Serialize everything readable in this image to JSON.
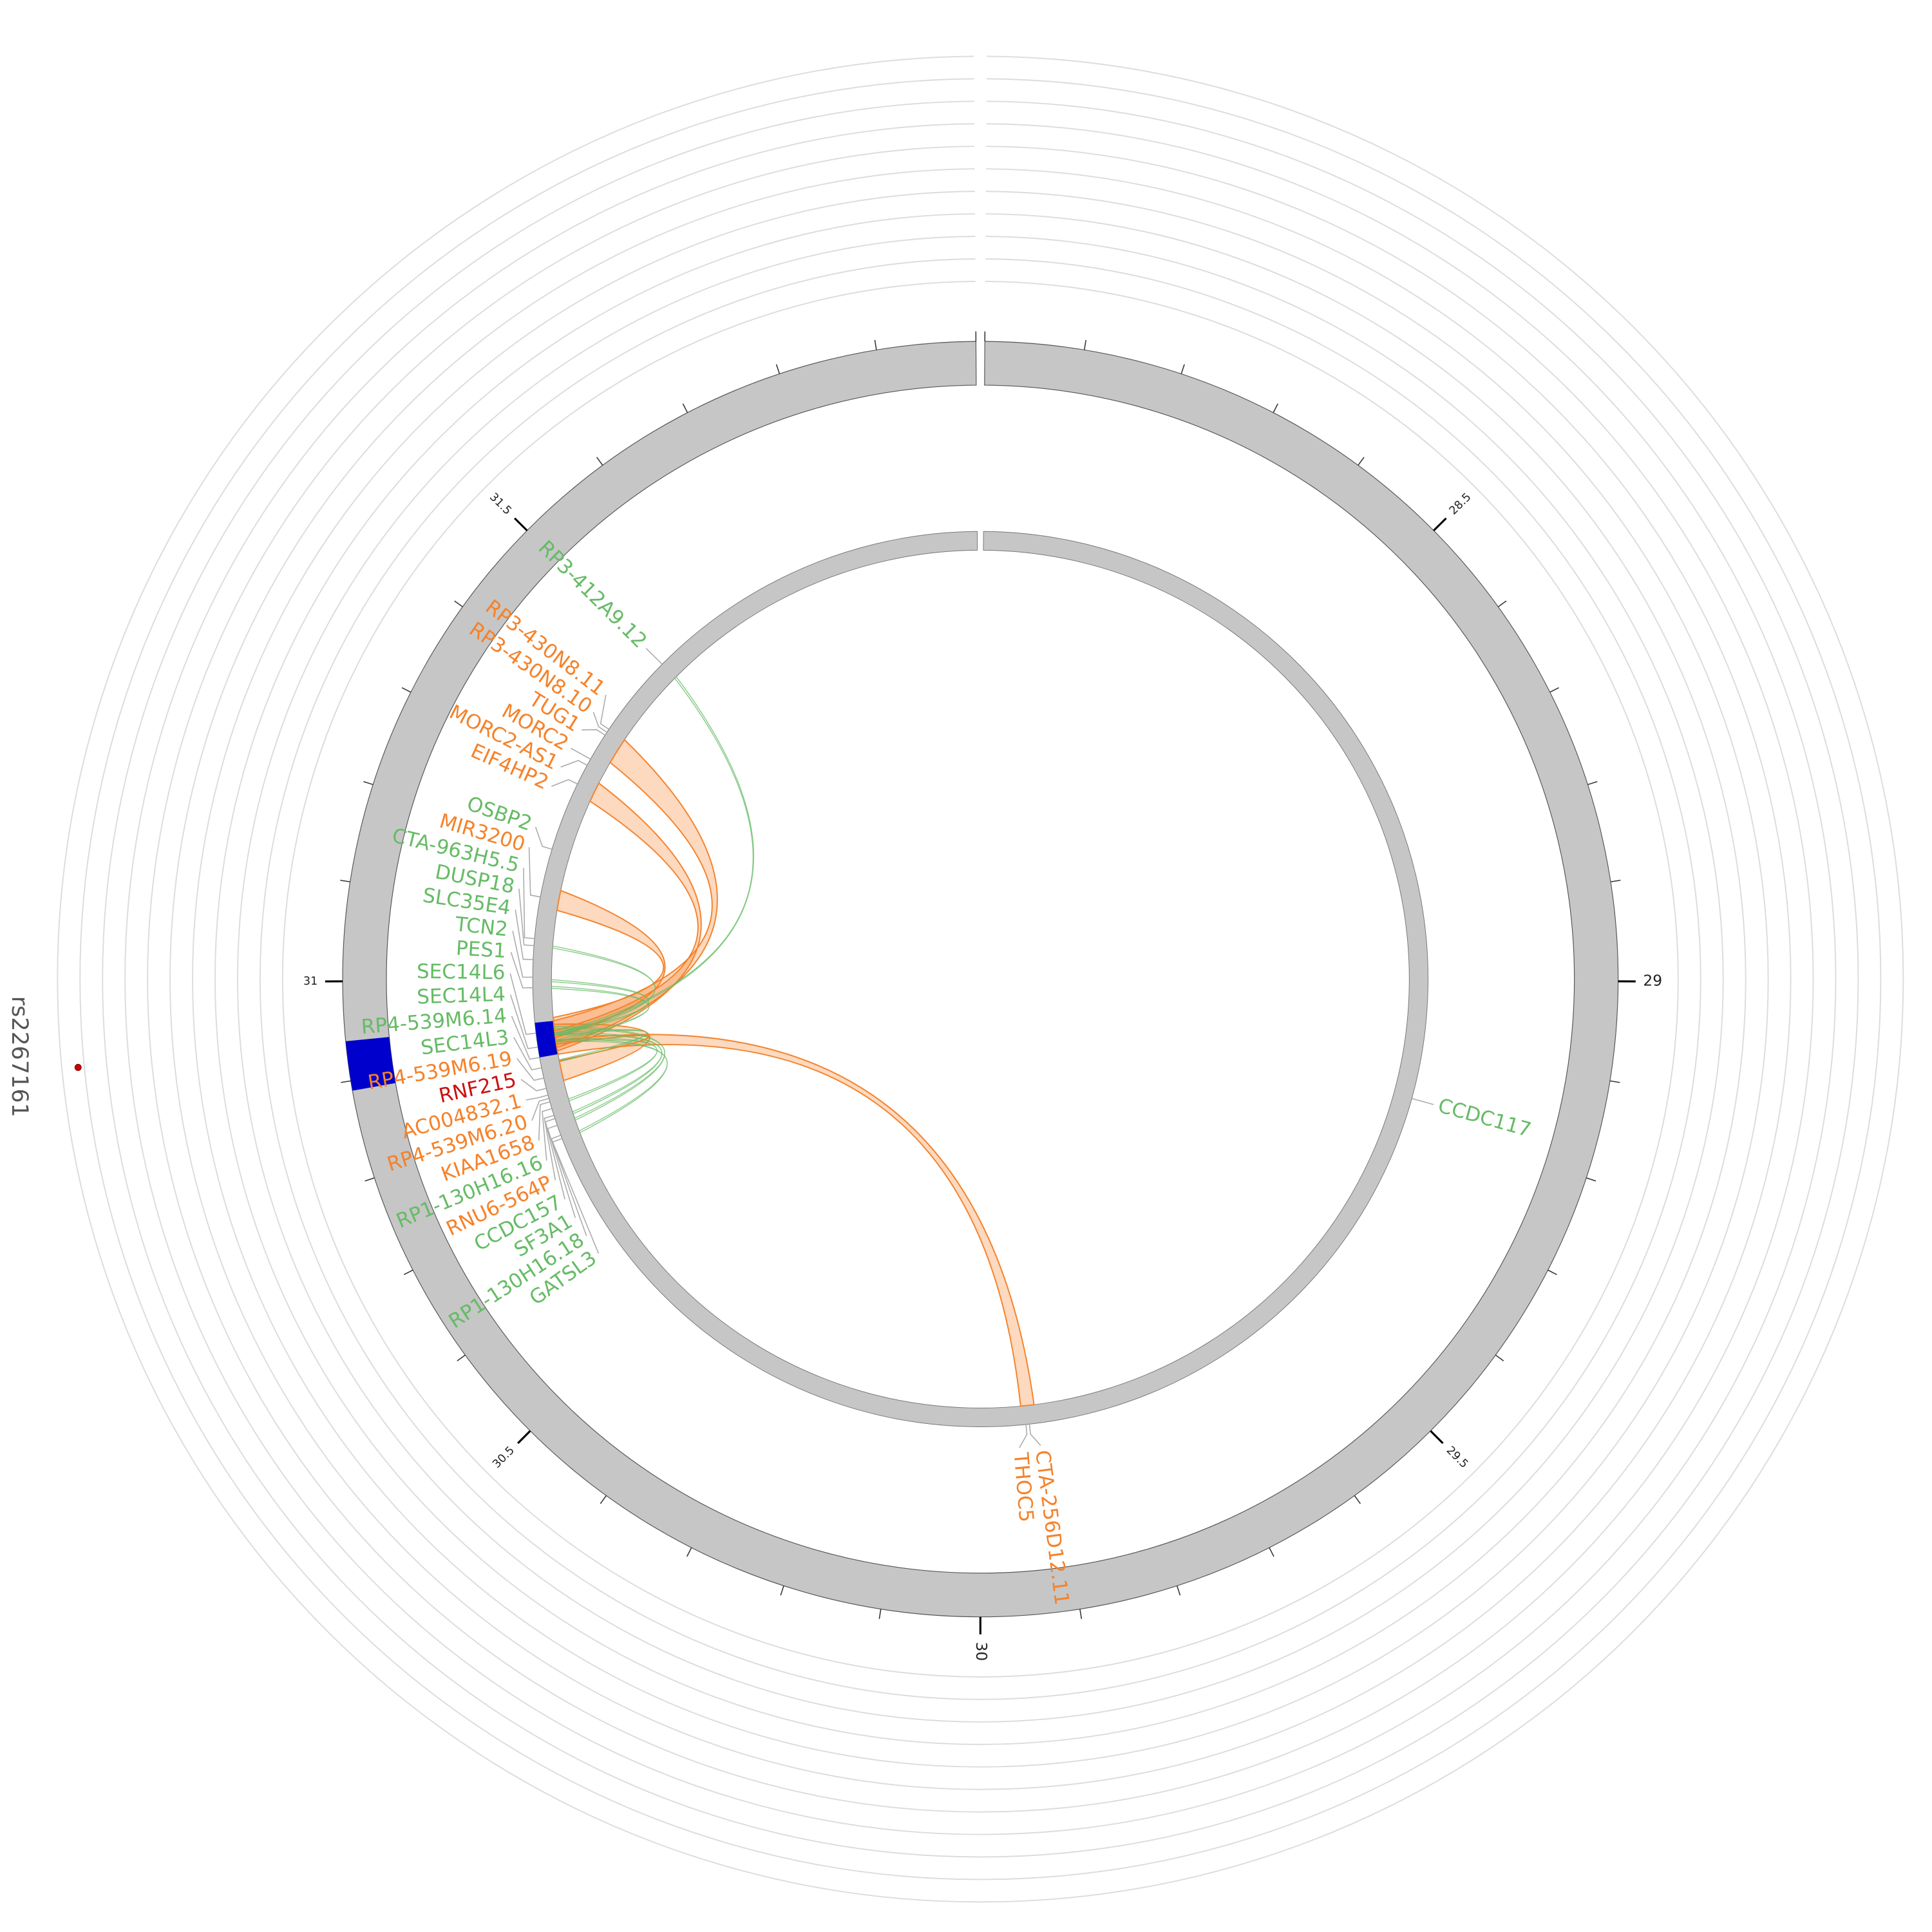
{
  "chart_data": {
    "type": "circos",
    "xlim": [
      28,
      32
    ],
    "xticks": [
      28.5,
      29,
      29.5,
      30,
      30.5,
      31,
      31.5
    ],
    "minor_xticks": [
      28,
      28.1,
      28.2,
      28.3,
      28.4,
      28.6,
      28.7,
      28.8,
      28.9,
      29.1,
      29.2,
      29.3,
      29.4,
      29.6,
      29.7,
      29.8,
      29.9,
      30.1,
      30.2,
      30.3,
      30.4,
      30.6,
      30.7,
      30.8,
      30.9,
      31.1,
      31.2,
      31.3,
      31.4,
      31.6,
      31.7,
      31.8,
      31.9,
      32
    ],
    "highlight": {
      "from": 30.89,
      "to": 30.94,
      "color": "#0000cc"
    },
    "snp": {
      "label": "rs2267161",
      "position": 30.94,
      "color": "#cc0000"
    },
    "genes": [
      {
        "name": "CCDC117",
        "position": 29.17,
        "color": "#66bb66"
      },
      {
        "name": "CTA-256D12.11",
        "position": 29.93,
        "color": "#f5822a"
      },
      {
        "name": "THOC5",
        "position": 29.935,
        "color": "#f5822a"
      },
      {
        "name": "GATSL3",
        "position": 30.77,
        "color": "#66bb66"
      },
      {
        "name": "RP1-130H16.18",
        "position": 30.775,
        "color": "#66bb66"
      },
      {
        "name": "SF3A1",
        "position": 30.79,
        "color": "#66bb66"
      },
      {
        "name": "CCDC157",
        "position": 30.8,
        "color": "#66bb66"
      },
      {
        "name": "RNU6-564P",
        "position": 30.805,
        "color": "#f5822a"
      },
      {
        "name": "RP1-130H16.16",
        "position": 30.815,
        "color": "#66bb66"
      },
      {
        "name": "KIAA1658",
        "position": 30.825,
        "color": "#f5822a"
      },
      {
        "name": "RP4-539M6.20",
        "position": 30.83,
        "color": "#f5822a"
      },
      {
        "name": "AC004832.1",
        "position": 30.835,
        "color": "#f5822a"
      },
      {
        "name": "RNF215",
        "position": 30.845,
        "color": "#cc1111"
      },
      {
        "name": "RP4-539M6.19",
        "position": 30.86,
        "color": "#f5822a"
      },
      {
        "name": "SEC14L3",
        "position": 30.875,
        "color": "#66bb66"
      },
      {
        "name": "RP4-539M6.14",
        "position": 30.89,
        "color": "#66bb66"
      },
      {
        "name": "SEC14L4",
        "position": 30.905,
        "color": "#66bb66"
      },
      {
        "name": "SEC14L6",
        "position": 30.925,
        "color": "#66bb66"
      },
      {
        "name": "PES1",
        "position": 30.99,
        "color": "#66bb66"
      },
      {
        "name": "TCN2",
        "position": 31.005,
        "color": "#66bb66"
      },
      {
        "name": "SLC35E4",
        "position": 31.03,
        "color": "#66bb66"
      },
      {
        "name": "DUSP18",
        "position": 31.05,
        "color": "#66bb66"
      },
      {
        "name": "CTA-963H5.5",
        "position": 31.06,
        "color": "#66bb66"
      },
      {
        "name": "MIR3200",
        "position": 31.12,
        "color": "#f5822a"
      },
      {
        "name": "OSBP2",
        "position": 31.19,
        "color": "#66bb66"
      },
      {
        "name": "EIF4HP2",
        "position": 31.29,
        "color": "#f5822a"
      },
      {
        "name": "MORC2-AS1",
        "position": 31.32,
        "color": "#f5822a"
      },
      {
        "name": "MORC2",
        "position": 31.33,
        "color": "#f5822a"
      },
      {
        "name": "TUG1",
        "position": 31.37,
        "color": "#f5822a"
      },
      {
        "name": "RP3-430N8.10",
        "position": 31.375,
        "color": "#f5822a"
      },
      {
        "name": "RP3-430N8.11",
        "position": 31.38,
        "color": "#f5822a"
      },
      {
        "name": "RP3-412A9.12",
        "position": 31.5,
        "color": "#66bb66"
      }
    ],
    "links": [
      {
        "from": 30.92,
        "to": 31.36,
        "width": 0.04,
        "color": "#f5822a"
      },
      {
        "from": 30.91,
        "to": 31.29,
        "width": 0.03,
        "color": "#f5822a"
      },
      {
        "from": 30.93,
        "to": 31.12,
        "width": 0.03,
        "color": "#f5822a"
      },
      {
        "from": 30.9,
        "to": 29.93,
        "width": 0.02,
        "color": "#f5822a"
      },
      {
        "from": 30.92,
        "to": 30.865,
        "width": 0.03,
        "color": "#f5822a"
      },
      {
        "from": 30.92,
        "to": 31.5,
        "width": 0.003,
        "color": "#66bb66"
      },
      {
        "from": 30.92,
        "to": 31.05,
        "width": 0.003,
        "color": "#66bb66"
      },
      {
        "from": 30.92,
        "to": 31.0,
        "width": 0.003,
        "color": "#66bb66"
      },
      {
        "from": 30.91,
        "to": 30.99,
        "width": 0.003,
        "color": "#66bb66"
      },
      {
        "from": 30.92,
        "to": 30.88,
        "width": 0.003,
        "color": "#66bb66"
      },
      {
        "from": 30.91,
        "to": 30.82,
        "width": 0.003,
        "color": "#66bb66"
      },
      {
        "from": 30.92,
        "to": 30.8,
        "width": 0.003,
        "color": "#66bb66"
      },
      {
        "from": 30.93,
        "to": 30.79,
        "width": 0.003,
        "color": "#66bb66"
      },
      {
        "from": 30.91,
        "to": 30.77,
        "width": 0.003,
        "color": "#66bb66"
      }
    ]
  }
}
